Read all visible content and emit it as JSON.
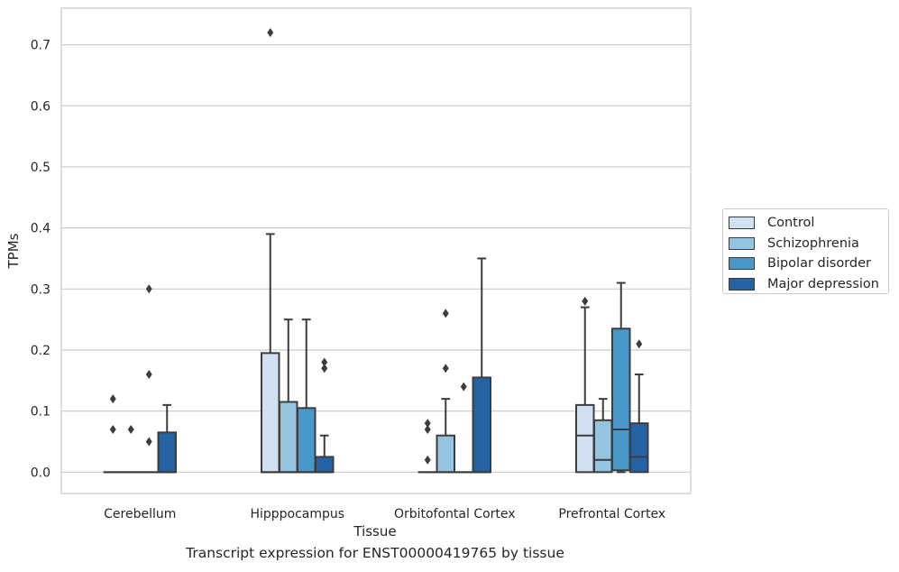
{
  "caption": "Transcript expression for ENST00000419765 by tissue",
  "chart_data": {
    "type": "box",
    "xlabel": "Tissue",
    "ylabel": "TPMs",
    "ylim": [
      -0.035,
      0.76
    ],
    "yticks": [
      0.0,
      0.1,
      0.2,
      0.3,
      0.4,
      0.5,
      0.6,
      0.7
    ],
    "ytick_labels": [
      "0.0",
      "0.1",
      "0.2",
      "0.3",
      "0.4",
      "0.5",
      "0.6",
      "0.7"
    ],
    "grid": "horizontal",
    "legend_position": "right",
    "categories": [
      "Cerebellum",
      "Hipppocampus",
      "Orbitofontal Cortex",
      "Prefrontal Cortex"
    ],
    "series": [
      {
        "name": "Control",
        "color": "#d0e1f2",
        "boxes": [
          {
            "q1": 0.0,
            "median": 0.0,
            "q3": 0.0,
            "whisker_low": 0.0,
            "whisker_high": 0.0,
            "outliers": [
              0.07,
              0.12
            ]
          },
          {
            "q1": 0.0,
            "median": 0.0,
            "q3": 0.195,
            "whisker_low": 0.0,
            "whisker_high": 0.39,
            "outliers": [
              0.72
            ]
          },
          {
            "q1": 0.0,
            "median": 0.0,
            "q3": 0.0,
            "whisker_low": 0.0,
            "whisker_high": 0.0,
            "outliers": [
              0.02,
              0.07,
              0.08
            ]
          },
          {
            "q1": 0.0,
            "median": 0.06,
            "q3": 0.11,
            "whisker_low": 0.0,
            "whisker_high": 0.27,
            "outliers": [
              0.28
            ]
          }
        ]
      },
      {
        "name": "Schizophrenia",
        "color": "#94c4df",
        "boxes": [
          {
            "q1": 0.0,
            "median": 0.0,
            "q3": 0.0,
            "whisker_low": 0.0,
            "whisker_high": 0.0,
            "outliers": [
              0.07
            ]
          },
          {
            "q1": 0.0,
            "median": 0.0,
            "q3": 0.115,
            "whisker_low": 0.0,
            "whisker_high": 0.25,
            "outliers": []
          },
          {
            "q1": 0.0,
            "median": 0.0,
            "q3": 0.06,
            "whisker_low": 0.0,
            "whisker_high": 0.12,
            "outliers": [
              0.17,
              0.26
            ]
          },
          {
            "q1": 0.0,
            "median": 0.02,
            "q3": 0.085,
            "whisker_low": 0.0,
            "whisker_high": 0.12,
            "outliers": []
          }
        ]
      },
      {
        "name": "Bipolar disorder",
        "color": "#4a98c9",
        "boxes": [
          {
            "q1": 0.0,
            "median": 0.0,
            "q3": 0.0,
            "whisker_low": 0.0,
            "whisker_high": 0.0,
            "outliers": [
              0.05,
              0.16,
              0.3
            ]
          },
          {
            "q1": 0.0,
            "median": 0.0,
            "q3": 0.105,
            "whisker_low": 0.0,
            "whisker_high": 0.25,
            "outliers": []
          },
          {
            "q1": 0.0,
            "median": 0.0,
            "q3": 0.0,
            "whisker_low": 0.0,
            "whisker_high": 0.0,
            "outliers": [
              0.14
            ]
          },
          {
            "q1": 0.003,
            "median": 0.07,
            "q3": 0.235,
            "whisker_low": 0.0,
            "whisker_high": 0.31,
            "outliers": []
          }
        ]
      },
      {
        "name": "Major depression",
        "color": "#2464a4",
        "boxes": [
          {
            "q1": 0.0,
            "median": 0.0,
            "q3": 0.065,
            "whisker_low": 0.0,
            "whisker_high": 0.11,
            "outliers": []
          },
          {
            "q1": 0.0,
            "median": 0.0,
            "q3": 0.025,
            "whisker_low": 0.0,
            "whisker_high": 0.06,
            "outliers": [
              0.17,
              0.18
            ]
          },
          {
            "q1": 0.0,
            "median": 0.0,
            "q3": 0.155,
            "whisker_low": 0.0,
            "whisker_high": 0.35,
            "outliers": []
          },
          {
            "q1": 0.0,
            "median": 0.025,
            "q3": 0.08,
            "whisker_low": 0.0,
            "whisker_high": 0.16,
            "outliers": [
              0.21
            ]
          }
        ]
      }
    ]
  }
}
